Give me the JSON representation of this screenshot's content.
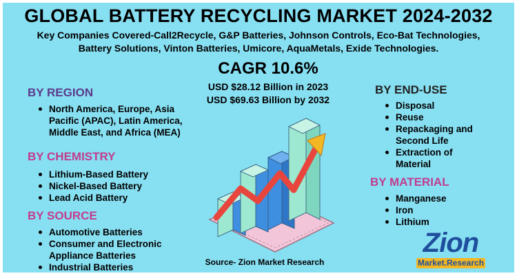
{
  "title": "GLOBAL BATTERY RECYCLING MARKET 2024-2032",
  "companies": {
    "line1": "Key Companies Covered-Call2Recycle, G&P Batteries, Johnson Controls, Eco-Bat Technologies,",
    "line2": "Battery Solutions, Vinton Batteries, Umicore, AquaMetals, Exide Technologies."
  },
  "cagr": "CAGR 10.6%",
  "market_values": {
    "v2023": "USD $28.12 Billion  in 2023",
    "v2032": "USD $69.63 Billion  by 2032"
  },
  "region": {
    "heading": "BY REGION",
    "items": [
      [
        "North America, Europe, Asia",
        "Pacific (APAC), Latin America,",
        "Middle East, and Africa (MEA)"
      ]
    ]
  },
  "chemistry": {
    "heading": "BY CHEMISTRY",
    "items": [
      "Lithium-Based Battery",
      "Nickel-Based Battery",
      "Lead Acid Battery"
    ]
  },
  "source_segment": {
    "heading": "BY SOURCE",
    "items": [
      [
        "Automotive Batteries"
      ],
      [
        "Consumer and Electronic",
        "Appliance Batteries"
      ],
      [
        "Industrial Batteries"
      ]
    ]
  },
  "end_use": {
    "heading": "BY END-USE",
    "items": [
      [
        "Disposal"
      ],
      [
        "Reuse"
      ],
      [
        "Repackaging and",
        "Second Life"
      ],
      [
        "Extraction of",
        "Material"
      ]
    ]
  },
  "material": {
    "heading": "BY MATERIAL",
    "items": [
      "Manganese",
      "Iron",
      "Lithium"
    ]
  },
  "source_note": "Source- Zion Market Research",
  "logo": {
    "top": "Zion",
    "bottom": "Market.Research"
  },
  "colors": {
    "background": "#87dff2",
    "heading_purple": "#5b3a8c",
    "heading_pink": "#c23c8e",
    "bar_teal": "#9de8d0",
    "bar_blue": "#3f8fe0",
    "arrow": "#e8453c",
    "logo_blue": "#1f4e9c",
    "logo_gold": "#f3b723"
  }
}
